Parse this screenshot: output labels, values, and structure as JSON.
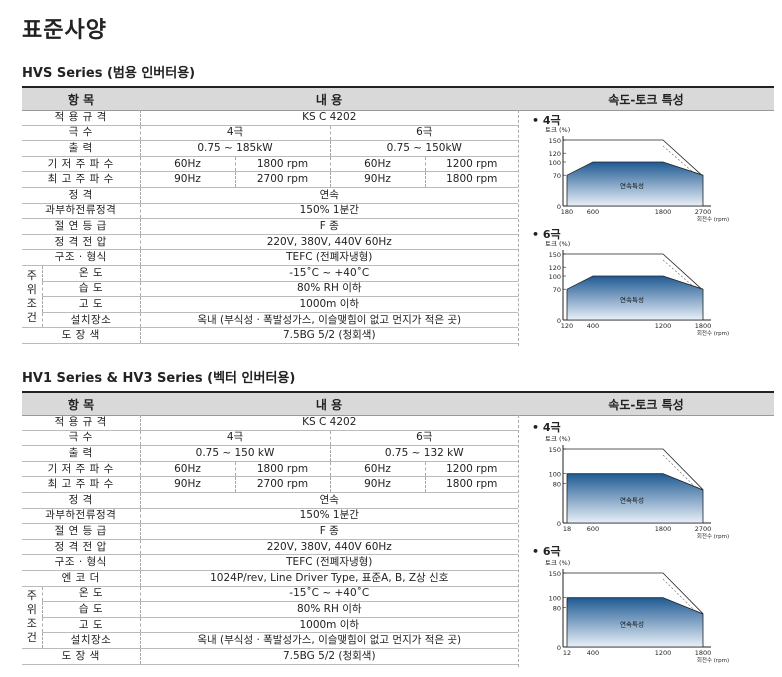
{
  "title": "표준사양",
  "sections": [
    {
      "title": "HVS Series (범용 인버터용)",
      "header": {
        "item": "항 목",
        "content": "내 용",
        "chart": "속도-토크 특성"
      },
      "rows": {
        "std": {
          "label": "적 용 규 격",
          "value": "KS C 4202"
        },
        "poles": {
          "label": "극 수",
          "v4": "4극",
          "v6": "6극"
        },
        "output": {
          "label": "출 력",
          "v4": "0.75 ~ 185kW",
          "v6": "0.75 ~ 150kW"
        },
        "base": {
          "label": "기 저 주 파 수",
          "f4": "60Hz",
          "r4": "1800 rpm",
          "f6": "60Hz",
          "r6": "1200 rpm"
        },
        "max": {
          "label": "최 고 주 파 수",
          "f4": "90Hz",
          "r4": "2700 rpm",
          "f6": "90Hz",
          "r6": "1800 rpm"
        },
        "rating": {
          "label": "정 격",
          "value": "연속"
        },
        "overload": {
          "label": "과부하전류정격",
          "value": "150% 1분간"
        },
        "insul": {
          "label": "절 연 등 급",
          "value": "F 종"
        },
        "voltage": {
          "label": "정 격 전 압",
          "value": "220V, 380V, 440V 60Hz"
        },
        "struct": {
          "label": "구조 · 형식",
          "value": "TEFC (전폐자냉형)"
        }
      },
      "env": {
        "side_label": [
          "주",
          "위",
          "조",
          "건"
        ],
        "temp": {
          "label": "온 도",
          "value": "-15˚C ~ +40˚C"
        },
        "humid": {
          "label": "습 도",
          "value": "80% RH 이하"
        },
        "alt": {
          "label": "고 도",
          "value": "1000m 이하"
        },
        "place": {
          "label": "설치장소",
          "value": "옥내 (부식성 · 폭발성가스, 이슬맺힘이 없고 먼지가 적은 곳)"
        }
      },
      "paint": {
        "label": "도 장 색",
        "value": "7.5BG 5/2 (청회색)"
      },
      "charts": [
        {
          "caption": "• 4극",
          "ylabel": "토크 (%)",
          "yticks": [
            "150",
            "120",
            "100",
            "70",
            "0"
          ],
          "xticks": [
            "180",
            "600",
            "1800",
            "2700"
          ],
          "xunit": "회전수 (rpm)",
          "region_label": "연속특성"
        },
        {
          "caption": "• 6극",
          "ylabel": "토크 (%)",
          "yticks": [
            "150",
            "120",
            "100",
            "70",
            "0"
          ],
          "xticks": [
            "120",
            "400",
            "1200",
            "1800"
          ],
          "xunit": "회전수 (rpm)",
          "region_label": "연속특성"
        }
      ]
    },
    {
      "title": "HV1 Series & HV3 Series (벡터 인버터용)",
      "header": {
        "item": "항 목",
        "content": "내 용",
        "chart": "속도-토크 특성"
      },
      "rows": {
        "std": {
          "label": "적 용 규 격",
          "value": "KS C 4202"
        },
        "poles": {
          "label": "극 수",
          "v4": "4극",
          "v6": "6극"
        },
        "output": {
          "label": "출 력",
          "v4": "0.75 ~ 150 kW",
          "v6": "0.75 ~ 132 kW"
        },
        "base": {
          "label": "기 저 주 파 수",
          "f4": "60Hz",
          "r4": "1800 rpm",
          "f6": "60Hz",
          "r6": "1200 rpm"
        },
        "max": {
          "label": "최 고 주 파 수",
          "f4": "90Hz",
          "r4": "2700 rpm",
          "f6": "90Hz",
          "r6": "1800 rpm"
        },
        "rating": {
          "label": "정 격",
          "value": "연속"
        },
        "overload": {
          "label": "과부하전류정격",
          "value": "150% 1분간"
        },
        "insul": {
          "label": "절 연 등 급",
          "value": "F 종"
        },
        "voltage": {
          "label": "정 격 전 압",
          "value": "220V, 380V, 440V 60Hz"
        },
        "struct": {
          "label": "구조 · 형식",
          "value": "TEFC (전폐자냉형)"
        },
        "encoder": {
          "label": "엔 코 더",
          "value": "1024P/rev, Line Driver Type, 표준A, B, Z상 신호"
        }
      },
      "env": {
        "side_label": [
          "주",
          "위",
          "조",
          "건"
        ],
        "temp": {
          "label": "온 도",
          "value": "-15˚C ~ +40˚C"
        },
        "humid": {
          "label": "습 도",
          "value": "80% RH 이하"
        },
        "alt": {
          "label": "고 도",
          "value": "1000m 이하"
        },
        "place": {
          "label": "설치장소",
          "value": "옥내 (부식성 · 폭발성가스, 이슬맺힘이 없고 먼지가 적은 곳)"
        }
      },
      "paint": {
        "label": "도 장 색",
        "value": "7.5BG 5/2 (청회색)"
      },
      "charts": [
        {
          "caption": "• 4극",
          "ylabel": "토크 (%)",
          "yticks": [
            "150",
            "100",
            "80",
            "0"
          ],
          "xticks": [
            "18",
            "600",
            "1800",
            "2700"
          ],
          "xunit": "회전수 (rpm)",
          "region_label": "연속특성"
        },
        {
          "caption": "• 6극",
          "ylabel": "토크 (%)",
          "yticks": [
            "150",
            "100",
            "80",
            "0"
          ],
          "xticks": [
            "12",
            "400",
            "1200",
            "1800"
          ],
          "xunit": "회전수 (rpm)",
          "region_label": "연속특성"
        }
      ]
    }
  ],
  "chart_data": [
    {
      "type": "area",
      "title": "HVS Series 4극",
      "x": [
        180,
        600,
        1800,
        2700
      ],
      "series": [
        {
          "values": [
            70,
            100,
            100,
            70
          ]
        }
      ],
      "ylim": [
        0,
        150
      ]
    },
    {
      "type": "area",
      "title": "HVS Series 6극",
      "x": [
        120,
        400,
        1200,
        1800
      ],
      "series": [
        {
          "values": [
            70,
            100,
            100,
            70
          ]
        }
      ],
      "ylim": [
        0,
        150
      ]
    },
    {
      "type": "area",
      "title": "HV1 & HV3 Series 4극",
      "x": [
        18,
        600,
        1800,
        2700
      ],
      "series": [
        {
          "values": [
            100,
            100,
            100,
            67
          ]
        }
      ],
      "ylim": [
        0,
        150
      ]
    },
    {
      "type": "area",
      "title": "HV1 & HV3 Series 6극",
      "x": [
        12,
        400,
        1200,
        1800
      ],
      "series": [
        {
          "values": [
            100,
            100,
            100,
            67
          ]
        }
      ],
      "ylim": [
        0,
        150
      ]
    }
  ]
}
